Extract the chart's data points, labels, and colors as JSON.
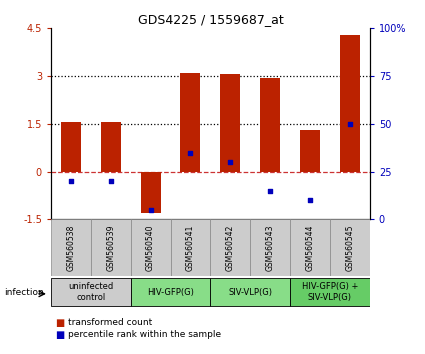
{
  "title": "GDS4225 / 1559687_at",
  "samples": [
    "GSM560538",
    "GSM560539",
    "GSM560540",
    "GSM560541",
    "GSM560542",
    "GSM560543",
    "GSM560544",
    "GSM560545"
  ],
  "red_bars": [
    1.55,
    1.55,
    -1.3,
    3.1,
    3.07,
    2.95,
    1.3,
    4.3
  ],
  "blue_squares_pct": [
    20,
    20,
    5,
    35,
    30,
    15,
    10,
    50
  ],
  "ylim_left": [
    -1.5,
    4.5
  ],
  "ylim_right": [
    0,
    100
  ],
  "yticks_left": [
    -1.5,
    0,
    1.5,
    3.0,
    4.5
  ],
  "yticks_right": [
    0,
    25,
    50,
    75,
    100
  ],
  "red_color": "#bb2200",
  "blue_color": "#0000bb",
  "dashed_zero_color": "#cc3333",
  "bar_width": 0.5,
  "groups": [
    {
      "label": "uninfected\ncontrol",
      "start": 0,
      "end": 2,
      "color": "#cccccc"
    },
    {
      "label": "HIV-GFP(G)",
      "start": 2,
      "end": 4,
      "color": "#88dd88"
    },
    {
      "label": "SIV-VLP(G)",
      "start": 4,
      "end": 6,
      "color": "#88dd88"
    },
    {
      "label": "HIV-GFP(G) +\nSIV-VLP(G)",
      "start": 6,
      "end": 8,
      "color": "#66cc66"
    }
  ],
  "infection_label": "infection",
  "legend_red": "transformed count",
  "legend_blue": "percentile rank within the sample",
  "sample_box_color": "#cccccc",
  "background_color": "#ffffff"
}
